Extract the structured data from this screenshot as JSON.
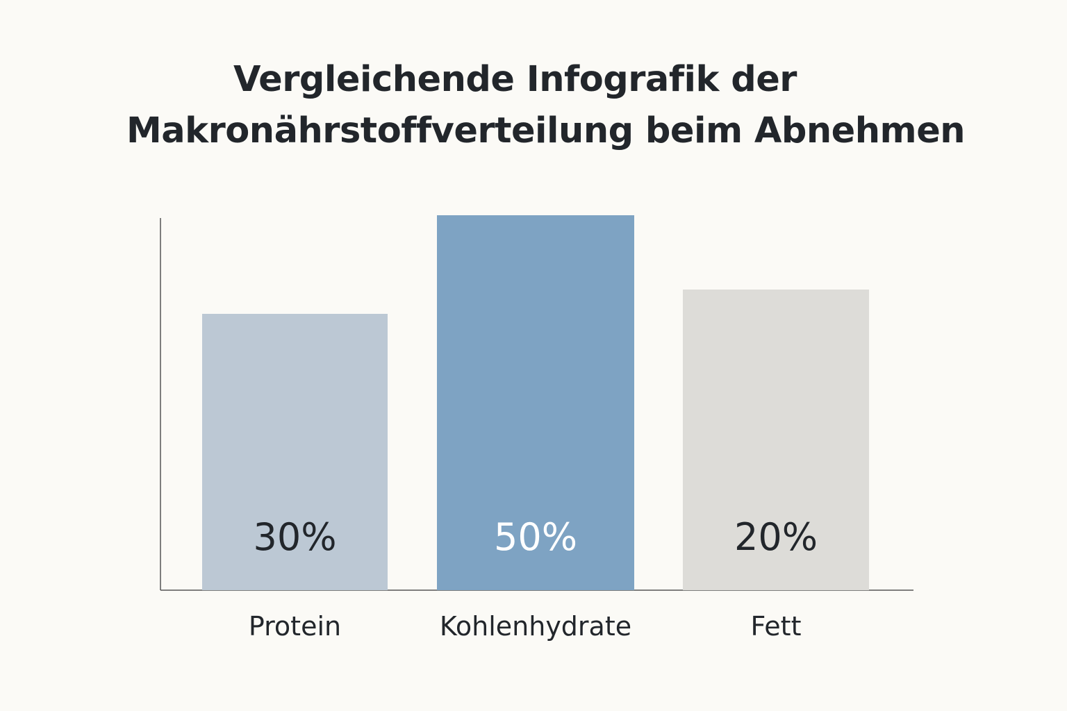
{
  "title_lines": [
    "Vergleichende Infografik der",
    "Makronährstoffverteilung beim Abnehmen"
  ],
  "chart_data": {
    "type": "bar",
    "title": "Vergleichende Infografik der Makronährstoffverteilung beim Abnehmen",
    "categories": [
      "Protein",
      "Kohlenhydrate",
      "Fett"
    ],
    "values": [
      30,
      50,
      20
    ],
    "value_labels": [
      "30%",
      "50%",
      "20%"
    ],
    "unit": "%",
    "colors": [
      "#bcc8d4",
      "#7ea3c3",
      "#dddcd8"
    ],
    "label_colors": [
      "#22262b",
      "#ffffff",
      "#22262b"
    ],
    "axis_color": "#555555",
    "grid": false,
    "legend": "none"
  }
}
